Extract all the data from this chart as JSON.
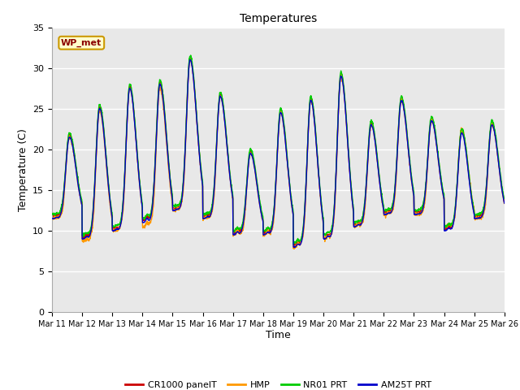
{
  "title": "Temperatures",
  "ylabel": "Temperature (C)",
  "xlabel": "Time",
  "annotation": "WP_met",
  "ylim": [
    0,
    35
  ],
  "bg_color": "#e8e8e8",
  "grid_color": "white",
  "series_colors": {
    "CR1000 panelT": "#cc0000",
    "HMP": "#ff9900",
    "NR01 PRT": "#00cc00",
    "AM25T PRT": "#0000cc"
  },
  "x_tick_labels": [
    "Mar 11",
    "Mar 12",
    "Mar 13",
    "Mar 14",
    "Mar 15",
    "Mar 16",
    "Mar 17",
    "Mar 18",
    "Mar 19",
    "Mar 20",
    "Mar 21",
    "Mar 22",
    "Mar 23",
    "Mar 24",
    "Mar 25",
    "Mar 26"
  ],
  "y_ticks": [
    0,
    5,
    10,
    15,
    20,
    25,
    30,
    35
  ],
  "line_width": 1.0,
  "daily_max": [
    21.5,
    25.0,
    27.5,
    28.0,
    31.0,
    26.5,
    19.5,
    24.5,
    26.0,
    29.0,
    23.0,
    26.0,
    23.5,
    22.0,
    23.0
  ],
  "daily_min": [
    11.5,
    9.0,
    10.0,
    11.0,
    12.5,
    11.5,
    9.5,
    9.5,
    8.0,
    9.0,
    10.5,
    12.0,
    12.0,
    10.0,
    11.5
  ],
  "daily_max2": [
    13.0,
    12.0,
    12.0,
    17.0,
    14.0,
    14.0,
    14.0,
    13.5,
    12.0,
    13.0,
    13.5,
    14.0,
    12.5,
    14.0,
    12.0
  ],
  "offsets_hmp": [
    0.0,
    -0.3,
    0.0,
    -0.5,
    0.0,
    0.0,
    0.0,
    0.0,
    0.0,
    0.0,
    0.0,
    0.0,
    0.0,
    0.5,
    0.0
  ],
  "offsets_nr01": [
    0.5,
    0.5,
    0.5,
    0.5,
    0.5,
    0.5,
    0.5,
    0.5,
    0.5,
    0.5,
    0.5,
    0.5,
    0.5,
    0.5,
    0.5
  ],
  "offsets_cr1000": [
    0.3,
    0.2,
    0.2,
    0.3,
    0.2,
    0.2,
    0.2,
    0.2,
    0.2,
    0.2,
    0.2,
    0.2,
    0.2,
    0.2,
    0.2
  ]
}
